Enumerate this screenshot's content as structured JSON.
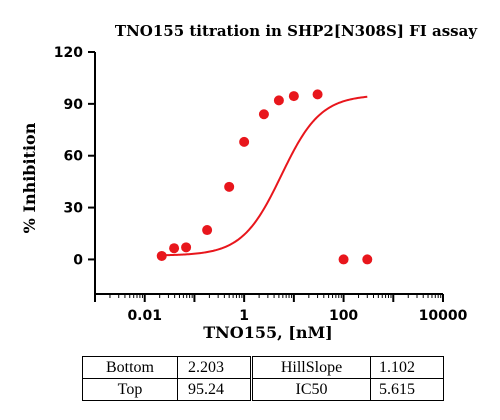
{
  "chart_data": {
    "type": "scatter",
    "title": "TNO155 titration in SHP2[N308S] FI assay",
    "xlabel": "TNO155, [nM]",
    "ylabel": "% Inhibition",
    "x_scale": "log",
    "xlim": [
      0.001,
      10000
    ],
    "ylim": [
      -20,
      120
    ],
    "x_ticks": [
      0.01,
      1,
      100,
      10000
    ],
    "x_tick_labels": [
      "0.01",
      "1",
      "100",
      "10000"
    ],
    "y_ticks": [
      0,
      30,
      60,
      90,
      120
    ],
    "y_tick_labels": [
      "0",
      "30",
      "60",
      "90",
      "120"
    ],
    "grid": false,
    "color": "#e8161c",
    "series": [
      {
        "x": [
          0.022,
          0.039,
          0.068,
          0.18,
          0.5,
          1.0,
          2.5,
          5.0,
          10,
          30,
          100,
          300
        ],
        "y": [
          2,
          6.5,
          7,
          17,
          42,
          68,
          84,
          92,
          94.5,
          95.5,
          0,
          0
        ],
        "fit": "four-parameter logistic"
      }
    ],
    "fit_params": {
      "Bottom": 2.203,
      "Top": 95.24,
      "HillSlope": 1.102,
      "IC50": 5.615
    }
  },
  "table": {
    "rows": [
      [
        "Bottom",
        "2.203",
        "HillSlope",
        "1.102"
      ],
      [
        "Top",
        "95.24",
        "IC50",
        "5.615"
      ]
    ]
  }
}
